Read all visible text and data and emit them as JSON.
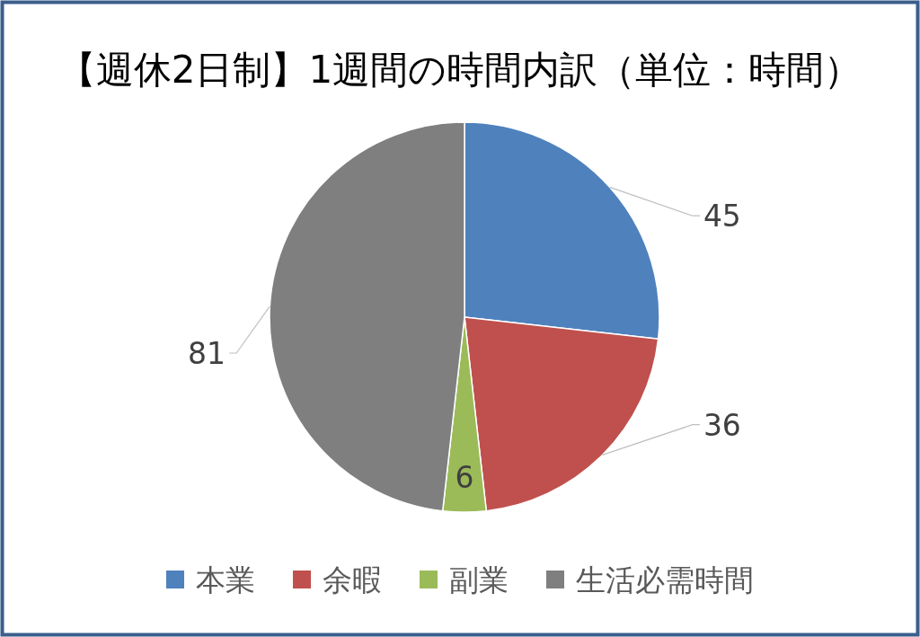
{
  "chart_data": {
    "type": "pie",
    "title": "【週休2日制】1週間の時間内訳（単位：時間）",
    "categories": [
      "本業",
      "余暇",
      "副業",
      "生活必需時間"
    ],
    "values": [
      45,
      36,
      6,
      81
    ],
    "colors": [
      "#4f81bd",
      "#c0504d",
      "#9bbb59",
      "#7f7f7f"
    ],
    "data_labels": true,
    "legend": "bottom"
  }
}
